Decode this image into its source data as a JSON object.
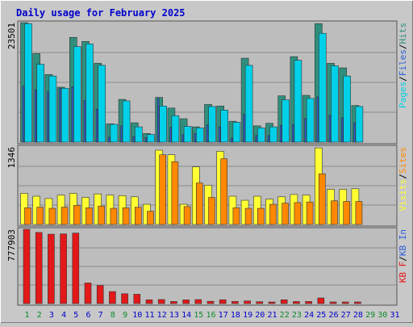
{
  "title": "Daily usage for February 2025",
  "colors": {
    "background": "#c8c8c8",
    "panel": "#bdbdbd",
    "title": "#0000cc",
    "hits": "#2f8f7c",
    "files": "#00d0e8",
    "pages": "#2b5fd9",
    "visits": "#ffff33",
    "sites": "#ff8800",
    "kbin": "#0a8a2a",
    "kbf": "#e41818",
    "weekend_day": "#0a8a2a",
    "weekday_day": "#0000cc"
  },
  "chart_data": [
    {
      "type": "bar",
      "name": "top",
      "ymax_label": "23501",
      "ylim": [
        0,
        23501
      ],
      "legend": [
        {
          "label": "Pages",
          "color": "#00d0e8"
        },
        {
          "label": "Files",
          "color": "#2b5fd9"
        },
        {
          "label": "Hits",
          "color": "#2f8f7c"
        }
      ],
      "categories": [
        "1",
        "2",
        "3",
        "4",
        "5",
        "6",
        "7",
        "8",
        "9",
        "10",
        "11",
        "12",
        "13",
        "14",
        "15",
        "16",
        "17",
        "18",
        "19",
        "20",
        "21",
        "22",
        "23",
        "24",
        "25",
        "26",
        "27",
        "28",
        "29",
        "30",
        "31"
      ],
      "series": [
        {
          "name": "Hits",
          "values": [
            23501,
            17400,
            13300,
            10800,
            20600,
            19800,
            15500,
            3600,
            8400,
            3800,
            1700,
            8800,
            6700,
            4600,
            3000,
            7400,
            7100,
            4100,
            16500,
            3200,
            3700,
            9100,
            16800,
            9200,
            23300,
            15500,
            14600,
            7200,
            null,
            null,
            null
          ]
        },
        {
          "name": "Files",
          "values": [
            23300,
            15300,
            13000,
            10600,
            18800,
            19300,
            15100,
            3500,
            8100,
            3000,
            1500,
            7100,
            5200,
            3100,
            2800,
            7000,
            6300,
            3900,
            15100,
            2800,
            3000,
            8300,
            16100,
            8600,
            21400,
            15000,
            13000,
            7000,
            null,
            null,
            null
          ]
        },
        {
          "name": "Pages",
          "values": [
            11000,
            10300,
            9900,
            10600,
            10900,
            8200,
            6500,
            1000,
            3200,
            1100,
            900,
            8600,
            2900,
            1500,
            1700,
            3400,
            3000,
            800,
            5500,
            1300,
            1300,
            3300,
            3500,
            4700,
            8900,
            5300,
            4800,
            3800,
            null,
            null,
            null
          ]
        }
      ]
    },
    {
      "type": "bar",
      "name": "middle",
      "ymax_label": "1346",
      "ylim": [
        0,
        1346
      ],
      "legend": [
        {
          "label": "Visits",
          "color": "#ffff33"
        },
        {
          "label": "Sites",
          "color": "#ff8800"
        }
      ],
      "categories": [
        "1",
        "2",
        "3",
        "4",
        "5",
        "6",
        "7",
        "8",
        "9",
        "10",
        "11",
        "12",
        "13",
        "14",
        "15",
        "16",
        "17",
        "18",
        "19",
        "20",
        "21",
        "22",
        "23",
        "24",
        "25",
        "26",
        "27",
        "28",
        "29",
        "30",
        "31"
      ],
      "series": [
        {
          "name": "Visits",
          "values": [
            540,
            490,
            450,
            510,
            540,
            470,
            530,
            510,
            500,
            480,
            350,
            1290,
            1210,
            350,
            1000,
            680,
            1270,
            490,
            420,
            490,
            440,
            480,
            520,
            510,
            1330,
            610,
            610,
            620,
            null,
            null,
            null
          ]
        },
        {
          "name": "Sites",
          "values": [
            290,
            300,
            280,
            300,
            330,
            290,
            320,
            280,
            290,
            300,
            230,
            1210,
            1090,
            310,
            720,
            470,
            1140,
            290,
            280,
            280,
            350,
            370,
            380,
            390,
            880,
            410,
            400,
            400,
            null,
            null,
            null
          ]
        }
      ]
    },
    {
      "type": "bar",
      "name": "bottom",
      "ymax_label": "777903",
      "ylim": [
        0,
        777903
      ],
      "legend": [
        {
          "label": "KB F",
          "color": "#e41818"
        },
        {
          "label": "KB In",
          "color": "#2b5fd9"
        }
      ],
      "categories": [
        "1",
        "2",
        "3",
        "4",
        "5",
        "6",
        "7",
        "8",
        "9",
        "10",
        "11",
        "12",
        "13",
        "14",
        "15",
        "16",
        "17",
        "18",
        "19",
        "20",
        "21",
        "22",
        "23",
        "24",
        "25",
        "26",
        "27",
        "28",
        "29",
        "30",
        "31"
      ],
      "series": [
        {
          "name": "KB F",
          "values": [
            777903,
            745000,
            727000,
            730000,
            738000,
            216000,
            190000,
            126000,
            103000,
            98000,
            40000,
            43000,
            22000,
            39000,
            42000,
            24000,
            40000,
            23000,
            28000,
            20000,
            17000,
            40000,
            22000,
            22000,
            59000,
            17000,
            17000,
            17000,
            null,
            null,
            null
          ]
        }
      ]
    }
  ],
  "days": [
    {
      "label": "1",
      "weekend": true
    },
    {
      "label": "2",
      "weekend": true
    },
    {
      "label": "3",
      "weekend": false
    },
    {
      "label": "4",
      "weekend": false
    },
    {
      "label": "5",
      "weekend": false
    },
    {
      "label": "6",
      "weekend": false
    },
    {
      "label": "7",
      "weekend": false
    },
    {
      "label": "8",
      "weekend": true
    },
    {
      "label": "9",
      "weekend": true
    },
    {
      "label": "10",
      "weekend": false
    },
    {
      "label": "11",
      "weekend": false
    },
    {
      "label": "12",
      "weekend": false
    },
    {
      "label": "13",
      "weekend": false
    },
    {
      "label": "14",
      "weekend": false
    },
    {
      "label": "15",
      "weekend": true
    },
    {
      "label": "16",
      "weekend": true
    },
    {
      "label": "17",
      "weekend": false
    },
    {
      "label": "18",
      "weekend": false
    },
    {
      "label": "19",
      "weekend": false
    },
    {
      "label": "20",
      "weekend": false
    },
    {
      "label": "21",
      "weekend": false
    },
    {
      "label": "22",
      "weekend": true
    },
    {
      "label": "23",
      "weekend": true
    },
    {
      "label": "24",
      "weekend": false
    },
    {
      "label": "25",
      "weekend": false
    },
    {
      "label": "26",
      "weekend": false
    },
    {
      "label": "27",
      "weekend": false
    },
    {
      "label": "28",
      "weekend": false
    },
    {
      "label": "29",
      "weekend": true
    },
    {
      "label": "30",
      "weekend": true
    },
    {
      "label": "31",
      "weekend": false
    }
  ]
}
